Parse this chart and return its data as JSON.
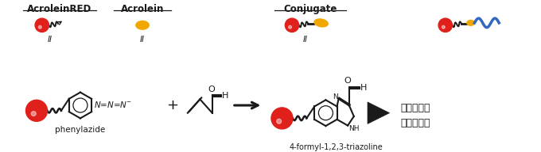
{
  "bg_color": "#ffffff",
  "red_color": "#e0201a",
  "yellow_color": "#f0a800",
  "black_color": "#1a1a1a",
  "blue_color": "#3468c0",
  "label_acroleinred": "AcroleinRED",
  "label_acrolein": "Acrolein",
  "label_conjugate": "Conjugate",
  "label_phenylazide": "phenylazide",
  "label_triazoline": "4-formyl-1,2,3-triazoline",
  "label_reaction": "与生物分子\n形成共价键",
  "label_ii": "II",
  "label_plus": "+",
  "figsize": [
    6.8,
    1.92
  ],
  "dpi": 100
}
